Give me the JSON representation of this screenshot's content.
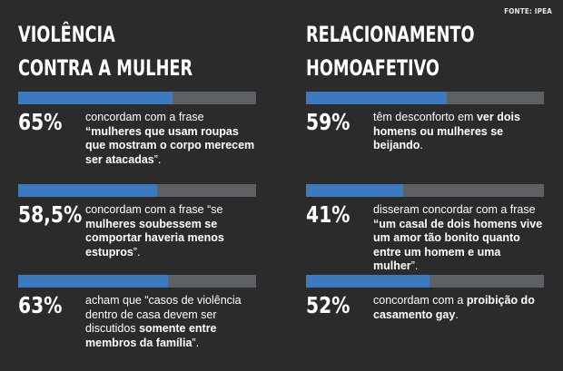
{
  "source": "FONTE: IPEA",
  "chart_data": [
    {
      "type": "bar",
      "title": "VIOLÊNCIA CONTRA A MULHER",
      "title_lines": [
        "VIOLÊNCIA",
        "CONTRA A MULHER"
      ],
      "items": [
        {
          "label": "65%",
          "value": 65,
          "segments": [
            {
              "text": "concordam com a frase ",
              "bold": false
            },
            {
              "text": "“mulheres que usam roupas que mostram o corpo merecem ser atacadas",
              "bold": true
            },
            {
              "text": "”.",
              "bold": false
            }
          ]
        },
        {
          "label": "58,5%",
          "value": 58.5,
          "segments": [
            {
              "text": "concordam com a frase “se ",
              "bold": false
            },
            {
              "text": "mulheres soubessem se comportar haveria menos estupros",
              "bold": true
            },
            {
              "text": "”.",
              "bold": false
            }
          ]
        },
        {
          "label": "63%",
          "value": 63,
          "segments": [
            {
              "text": "acham que “casos de violência dentro de casa devem ser discutidos ",
              "bold": false
            },
            {
              "text": "somente entre membros da família",
              "bold": true
            },
            {
              "text": "”.",
              "bold": false
            }
          ]
        }
      ],
      "xlim": [
        0,
        100
      ]
    },
    {
      "type": "bar",
      "title": "RELACIONAMENTO HOMOAFETIVO",
      "title_lines": [
        "RELACIONAMENTO",
        "HOMOAFETIVO"
      ],
      "items": [
        {
          "label": "59%",
          "value": 59,
          "segments": [
            {
              "text": "têm desconforto em ",
              "bold": false
            },
            {
              "text": "ver dois homens ou mulheres se beijando",
              "bold": true
            },
            {
              "text": ".",
              "bold": false
            }
          ]
        },
        {
          "label": "41%",
          "value": 41,
          "segments": [
            {
              "text": "disseram concordar com a frase ",
              "bold": false
            },
            {
              "text": "“um casal de dois homens vive um amor tão bonito quanto entre um homem e uma mulher",
              "bold": true
            },
            {
              "text": "”.",
              "bold": false
            }
          ]
        },
        {
          "label": "52%",
          "value": 52,
          "segments": [
            {
              "text": "concordam com a ",
              "bold": false
            },
            {
              "text": "proibição do casamento gay",
              "bold": true
            },
            {
              "text": ".",
              "bold": false
            }
          ]
        }
      ],
      "xlim": [
        0,
        100
      ]
    }
  ],
  "colors": {
    "background": "#2b2b2b",
    "bar_fill": "#3d79bf",
    "bar_track": "#5d6166",
    "text": "#ffffff"
  }
}
